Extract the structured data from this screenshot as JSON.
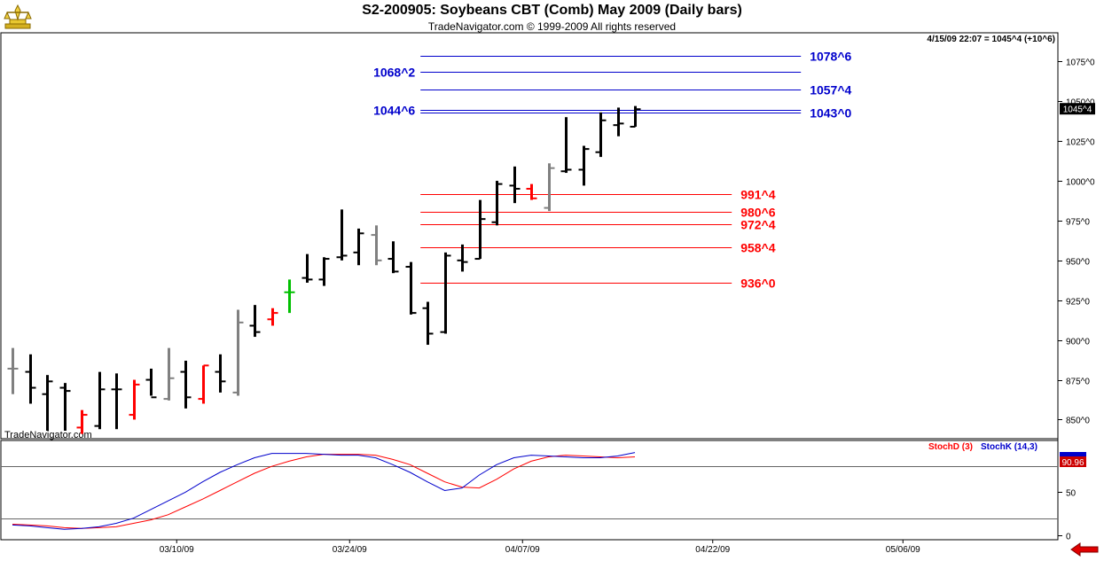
{
  "header": {
    "title": "S2-200905:  Soybeans CBT (Comb) May 2009  (Daily bars)",
    "subtitle": "TradeNavigator.com © 1999-2009 All rights reserved",
    "quote": "4/15/09 22:07 = 1045^4 (+10^6)",
    "watermark": "TradeNavigator.com"
  },
  "icons": {
    "logo": "trade-navigator-logo-icon",
    "nav": "left-arrow-icon"
  },
  "colors": {
    "up_bar": "#000000",
    "gray_bar": "#808080",
    "red_bar": "#ff0000",
    "green_bar": "#00c000",
    "stochD": "#ff0000",
    "stochK": "#0000cc",
    "blue_level": "#0000cc",
    "red_level": "#ff0000",
    "frame": "#000000",
    "price_tag_bg": "#000000",
    "stoch_tag_bg": "#cc0000"
  },
  "chart_data": [
    {
      "type": "ohlc",
      "price_axis": {
        "ticks": [
          "850^0",
          "875^0",
          "900^0",
          "925^0",
          "950^0",
          "975^0",
          "1000^0",
          "1025^0",
          "1050^0",
          "1075^0"
        ],
        "tick_values": [
          850,
          875,
          900,
          925,
          950,
          975,
          1000,
          1025,
          1050,
          1075
        ],
        "ylim": [
          838,
          1093
        ]
      },
      "x_axis": {
        "tick_labels": [
          "03/10/09",
          "03/24/09",
          "04/07/09",
          "04/22/09",
          "05/06/09"
        ],
        "tick_slots": [
          9.5,
          19.5,
          29.5,
          40.5,
          51.5
        ],
        "slots": 60
      },
      "current_price": "1045^4",
      "bars": [
        {
          "s": 0,
          "o": 882,
          "h": 895,
          "l": 866,
          "c": 882,
          "color": "gray"
        },
        {
          "s": 1,
          "o": 880,
          "h": 891,
          "l": 860,
          "c": 870,
          "color": "black"
        },
        {
          "s": 2,
          "o": 866,
          "h": 878,
          "l": 843,
          "c": 874,
          "color": "black"
        },
        {
          "s": 3,
          "o": 870,
          "h": 873,
          "l": 843,
          "c": 868,
          "color": "black"
        },
        {
          "s": 4,
          "o": 845,
          "h": 856,
          "l": 841,
          "c": 853,
          "color": "red"
        },
        {
          "s": 5,
          "o": 846,
          "h": 880,
          "l": 844,
          "c": 869,
          "color": "black"
        },
        {
          "s": 6,
          "o": 869,
          "h": 879,
          "l": 844,
          "c": 869,
          "color": "black"
        },
        {
          "s": 7,
          "o": 853,
          "h": 875,
          "l": 850,
          "c": 872,
          "color": "red"
        },
        {
          "s": 8,
          "o": 875,
          "h": 882,
          "l": 865,
          "c": 864,
          "color": "black"
        },
        {
          "s": 9,
          "o": 863,
          "h": 895,
          "l": 862,
          "c": 876,
          "color": "gray"
        },
        {
          "s": 10,
          "o": 880,
          "h": 887,
          "l": 857,
          "c": 864,
          "color": "black"
        },
        {
          "s": 11,
          "o": 863,
          "h": 884,
          "l": 860,
          "c": 884,
          "color": "red"
        },
        {
          "s": 12,
          "o": 880,
          "h": 891,
          "l": 867,
          "c": 874,
          "color": "black"
        },
        {
          "s": 13,
          "o": 867,
          "h": 919,
          "l": 865,
          "c": 911,
          "color": "gray"
        },
        {
          "s": 14,
          "o": 909,
          "h": 922,
          "l": 902,
          "c": 905,
          "color": "black"
        },
        {
          "s": 15,
          "o": 913,
          "h": 920,
          "l": 909,
          "c": 917,
          "color": "red"
        },
        {
          "s": 16,
          "o": 930,
          "h": 938,
          "l": 917,
          "c": 930,
          "color": "green"
        },
        {
          "s": 17,
          "o": 939,
          "h": 954,
          "l": 936,
          "c": 938,
          "color": "black"
        },
        {
          "s": 18,
          "o": 938,
          "h": 952,
          "l": 934,
          "c": 951,
          "color": "black"
        },
        {
          "s": 19,
          "o": 952,
          "h": 982,
          "l": 950,
          "c": 953,
          "color": "black"
        },
        {
          "s": 20,
          "o": 955,
          "h": 970,
          "l": 947,
          "c": 967,
          "color": "black"
        },
        {
          "s": 21,
          "o": 966,
          "h": 972,
          "l": 947,
          "c": 950,
          "color": "gray"
        },
        {
          "s": 22,
          "o": 951,
          "h": 962,
          "l": 942,
          "c": 943,
          "color": "black"
        },
        {
          "s": 23,
          "o": 946,
          "h": 949,
          "l": 916,
          "c": 917,
          "color": "black"
        },
        {
          "s": 24,
          "o": 920,
          "h": 924,
          "l": 897,
          "c": 904,
          "color": "black"
        },
        {
          "s": 25,
          "o": 905,
          "h": 955,
          "l": 904,
          "c": 953,
          "color": "black"
        },
        {
          "s": 26,
          "o": 950,
          "h": 960,
          "l": 943,
          "c": 949,
          "color": "black"
        },
        {
          "s": 27,
          "o": 951,
          "h": 988,
          "l": 951,
          "c": 976,
          "color": "black"
        },
        {
          "s": 28,
          "o": 974,
          "h": 1000,
          "l": 972,
          "c": 998,
          "color": "black"
        },
        {
          "s": 29,
          "o": 997,
          "h": 1009,
          "l": 986,
          "c": 995,
          "color": "black"
        },
        {
          "s": 30,
          "o": 995,
          "h": 998,
          "l": 988,
          "c": 989,
          "color": "red"
        },
        {
          "s": 31,
          "o": 983,
          "h": 1011,
          "l": 981,
          "c": 1008,
          "color": "gray"
        },
        {
          "s": 32,
          "o": 1006,
          "h": 1040,
          "l": 1005,
          "c": 1007,
          "color": "black"
        },
        {
          "s": 33,
          "o": 1007,
          "h": 1022,
          "l": 997,
          "c": 1020,
          "color": "black"
        },
        {
          "s": 34,
          "o": 1018,
          "h": 1043,
          "l": 1015,
          "c": 1038,
          "color": "black"
        },
        {
          "s": 35,
          "o": 1035,
          "h": 1046,
          "l": 1028,
          "c": 1036,
          "color": "black"
        },
        {
          "s": 36,
          "o": 1034,
          "h": 1047,
          "l": 1034,
          "c": 1045,
          "color": "black"
        }
      ],
      "levels": [
        {
          "label": "1078^6",
          "value": 1078.75,
          "color": "blue",
          "x0_slot": 23.6,
          "x1_slot": 45.6,
          "label_side": "right"
        },
        {
          "label": "1068^2",
          "value": 1068.25,
          "color": "blue",
          "x0_slot": 23.6,
          "x1_slot": 45.6,
          "label_side": "left"
        },
        {
          "label": "1057^4",
          "value": 1057.5,
          "color": "blue",
          "x0_slot": 23.6,
          "x1_slot": 45.6,
          "label_side": "right"
        },
        {
          "label": "1044^6",
          "value": 1044.75,
          "color": "blue",
          "x0_slot": 23.6,
          "x1_slot": 45.6,
          "label_side": "left"
        },
        {
          "label": "1043^0",
          "value": 1043.0,
          "color": "blue",
          "x0_slot": 23.6,
          "x1_slot": 45.6,
          "label_side": "right"
        },
        {
          "label": "991^4",
          "value": 991.5,
          "color": "red",
          "x0_slot": 23.6,
          "x1_slot": 41.6,
          "label_side": "right"
        },
        {
          "label": "980^6",
          "value": 980.75,
          "color": "red",
          "x0_slot": 23.6,
          "x1_slot": 41.6,
          "label_side": "right"
        },
        {
          "label": "972^4",
          "value": 972.5,
          "color": "red",
          "x0_slot": 23.6,
          "x1_slot": 41.6,
          "label_side": "right"
        },
        {
          "label": "958^4",
          "value": 958.5,
          "color": "red",
          "x0_slot": 23.6,
          "x1_slot": 41.6,
          "label_side": "right"
        },
        {
          "label": "936^0",
          "value": 936.0,
          "color": "red",
          "x0_slot": 23.6,
          "x1_slot": 41.6,
          "label_side": "right"
        }
      ]
    },
    {
      "type": "line",
      "legend": [
        "StochD (3)",
        "StochK (14,3)"
      ],
      "y_axis": {
        "ticks": [
          "0",
          "50"
        ],
        "tick_values": [
          0,
          50
        ],
        "ylim": [
          -5,
          110
        ],
        "guides": [
          80,
          20
        ]
      },
      "last_value": "90.96",
      "series": [
        {
          "name": "StochD (3)",
          "color": "red",
          "values": [
            13,
            12,
            11,
            9,
            8,
            9,
            10,
            14,
            18,
            24,
            33,
            42,
            52,
            62,
            72,
            80,
            86,
            91,
            94,
            94,
            94,
            93,
            88,
            82,
            72,
            62,
            56,
            55,
            65,
            77,
            86,
            91,
            93,
            92,
            91,
            90,
            91
          ]
        },
        {
          "name": "StochK (14,3)",
          "color": "blue",
          "values": [
            12,
            11,
            9,
            7,
            8,
            10,
            14,
            20,
            30,
            40,
            50,
            62,
            73,
            82,
            90,
            95,
            95,
            95,
            94,
            93,
            93,
            90,
            82,
            73,
            62,
            52,
            55,
            70,
            82,
            90,
            93,
            92,
            91,
            90,
            90,
            92,
            96
          ]
        }
      ]
    }
  ]
}
